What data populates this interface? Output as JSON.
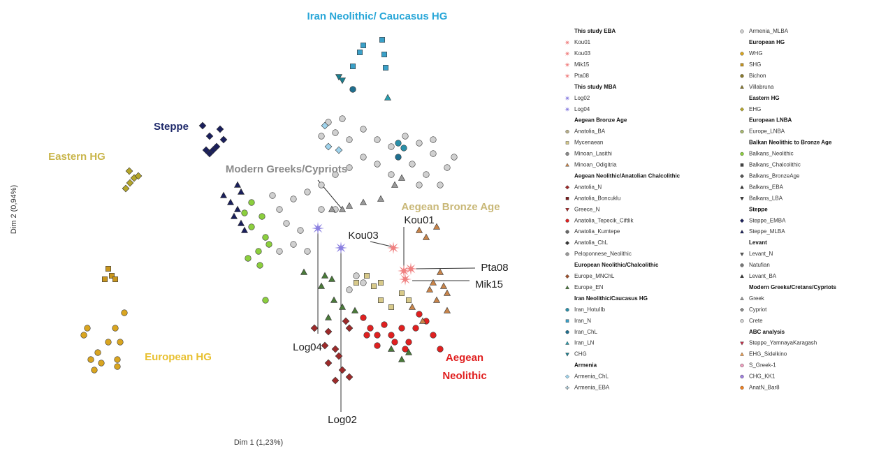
{
  "chart_data": {
    "type": "scatter",
    "x_label": "Dim 1 (1,23%)",
    "y_label": "Dim 2 (0,94%)",
    "xlim": [
      0,
      720
    ],
    "ylim": [
      0,
      600
    ],
    "annotations": [
      {
        "text": "Iran Neolithic/ Caucasus HG",
        "color": "#2aa7d8"
      },
      {
        "text": "Steppe",
        "color": "#1f2a6b"
      },
      {
        "text": "Eastern HG",
        "color": "#c9b54a"
      },
      {
        "text": "Modern Greeks/Cypriots",
        "color": "#8a8a8a"
      },
      {
        "text": "Aegean Bronze Age",
        "color": "#c9b878"
      },
      {
        "text": "European HG",
        "color": "#e8c030"
      },
      {
        "text": "Aegean Neolithic",
        "color": "#e02020"
      }
    ],
    "sample_labels": [
      "Kou01",
      "Kou03",
      "Pta08",
      "Mik15",
      "Log04",
      "Log02"
    ],
    "legend": [
      [
        {
          "heading": "This study EBA"
        },
        {
          "name": "Kou01",
          "color": "#f08080",
          "marker": "star",
          "x": [
            538
          ],
          "y": [
            212
          ]
        },
        {
          "name": "Kou03",
          "color": "#f08080",
          "marker": "star",
          "x": [
            523
          ],
          "y": [
            245
          ]
        },
        {
          "name": "Mik15",
          "color": "#f08080",
          "marker": "star",
          "x": [
            540
          ],
          "y": [
            200
          ]
        },
        {
          "name": "Pta08",
          "color": "#f08080",
          "marker": "star",
          "x": [
            548
          ],
          "y": [
            215
          ]
        },
        {
          "heading": "This study MBA"
        },
        {
          "name": "Log02",
          "color": "#8a7fe0",
          "marker": "star",
          "x": [
            448
          ],
          "y": [
            245
          ]
        },
        {
          "name": "Log04",
          "color": "#8a7fe0",
          "marker": "star",
          "x": [
            415
          ],
          "y": [
            273
          ]
        },
        {
          "heading": "Aegean Bronze Age"
        },
        {
          "name": "Anatolia_BA",
          "color": "#b9b08a",
          "marker": "circle",
          "x": [],
          "y": []
        },
        {
          "name": "Mycenaean",
          "color": "#d7c98a",
          "marker": "square",
          "x": [
            505,
            495,
            470,
            485,
            505,
            520,
            535,
            545
          ],
          "y": [
            170,
            190,
            195,
            205,
            195,
            160,
            180,
            170
          ]
        },
        {
          "name": "Minoan_Lasithi",
          "color": "#888888",
          "marker": "circle",
          "x": [],
          "y": []
        },
        {
          "name": "Minoan_Odigitria",
          "color": "#c8844a",
          "marker": "tri",
          "x": [
            560,
            570,
            585,
            590,
            595,
            600,
            580,
            575,
            550,
            565,
            585,
            600
          ],
          "y": [
            270,
            260,
            275,
            210,
            190,
            180,
            195,
            185,
            160,
            140,
            170,
            155
          ]
        },
        {
          "heading": "Aegean Neolithic/Anatolian Chalcolithic"
        },
        {
          "name": "Anatolia_N",
          "color": "#9e2a2a",
          "marker": "diamond",
          "x": [
            410,
            430,
            440,
            445,
            430,
            450,
            460,
            425,
            440,
            455,
            460
          ],
          "y": [
            130,
            125,
            100,
            90,
            80,
            70,
            60,
            105,
            55,
            140,
            130
          ]
        },
        {
          "name": "Anatolia_Boncuklu",
          "color": "#7a1a1a",
          "marker": "square",
          "x": [],
          "y": []
        },
        {
          "name": "Greece_N",
          "color": "#b22222",
          "marker": "tridown",
          "x": [],
          "y": []
        },
        {
          "name": "Anatolia_Tepecik_Ciftlik",
          "color": "#e02020",
          "marker": "circle",
          "x": [
            480,
            490,
            500,
            510,
            520,
            535,
            545,
            555,
            570,
            560,
            580,
            590,
            540,
            525,
            485,
            500
          ],
          "y": [
            145,
            130,
            120,
            135,
            120,
            130,
            110,
            130,
            140,
            150,
            120,
            100,
            100,
            110,
            120,
            105
          ]
        },
        {
          "name": "Anatolia_Kumtepe",
          "color": "#666666",
          "marker": "circle",
          "x": [],
          "y": []
        },
        {
          "name": "Anatolia_ChL",
          "color": "#333333",
          "marker": "diamond",
          "x": [],
          "y": []
        },
        {
          "name": "Peloponnese_Neolithic",
          "color": "#999999",
          "marker": "circle",
          "x": [],
          "y": []
        },
        {
          "heading": "European Neolithic/Chalcolithic"
        },
        {
          "name": "Europe_MNChL",
          "color": "#a0522d",
          "marker": "diamond",
          "x": [],
          "y": []
        },
        {
          "name": "Europe_EN",
          "color": "#4a7a3a",
          "marker": "tri",
          "x": [
            395,
            425,
            420,
            435,
            438,
            468,
            450,
            430,
            520,
            545,
            535
          ],
          "y": [
            210,
            205,
            190,
            200,
            170,
            155,
            160,
            145,
            100,
            95,
            85
          ]
        },
        {
          "heading": "Iran Neolithic/Caucasus HG"
        },
        {
          "name": "Iran_HotuIIb",
          "color": "#2a8fa8",
          "marker": "circle",
          "x": [
            530,
            538
          ],
          "y": [
            395,
            388
          ]
        },
        {
          "name": "Iran_N",
          "color": "#3aa0c8",
          "marker": "square",
          "x": [
            480,
            475,
            507,
            465,
            510,
            512
          ],
          "y": [
            535,
            525,
            543,
            505,
            522,
            503
          ]
        },
        {
          "name": "Iran_ChL",
          "color": "#1f6f8f",
          "marker": "circle",
          "x": [
            465,
            530
          ],
          "y": [
            472,
            375
          ]
        },
        {
          "name": "Iran_LN",
          "color": "#2a9fb0",
          "marker": "tri",
          "x": [
            515
          ],
          "y": [
            460
          ]
        },
        {
          "name": "CHG",
          "color": "#1b7f8f",
          "marker": "tridown",
          "x": [
            450,
            445
          ],
          "y": [
            485,
            490
          ]
        },
        {
          "heading": "Armenia"
        },
        {
          "name": "Armenia_ChL",
          "color": "#9fd3ec",
          "marker": "diamond",
          "x": [
            425,
            430,
            445
          ],
          "y": [
            420,
            390,
            385
          ]
        },
        {
          "name": "Armenia_EBA",
          "color": "#bfe3f3",
          "marker": "cross",
          "x": [],
          "y": []
        }
      ],
      [
        {
          "name": "Armenia_MLBA",
          "color": "#cfcfcf",
          "marker": "circle",
          "x": [],
          "y": []
        },
        {
          "heading": "European HG"
        },
        {
          "name": "WHG",
          "color": "#d9a520",
          "marker": "circle",
          "x": [
            138,
            85,
            125,
            80,
            132,
            100,
            90,
            105,
            95,
            128,
            128,
            115
          ],
          "y": [
            152,
            130,
            130,
            120,
            110,
            95,
            85,
            80,
            70,
            85,
            75,
            110
          ]
        },
        {
          "name": "SHG",
          "color": "#c8961e",
          "marker": "square",
          "x": [
            115,
            120,
            110,
            125
          ],
          "y": [
            215,
            205,
            200,
            200
          ]
        },
        {
          "name": "Bichon",
          "color": "#8a7a2a",
          "marker": "circle",
          "x": [],
          "y": []
        },
        {
          "name": "Villabruna",
          "color": "#8a7a2a",
          "marker": "tri",
          "x": [],
          "y": []
        },
        {
          "heading": "Eastern HG"
        },
        {
          "name": "EHG",
          "color": "#b5a62a",
          "marker": "diamond",
          "x": [
            145,
            152,
            140,
            158,
            146
          ],
          "y": [
            355,
            345,
            330,
            348,
            338
          ]
        },
        {
          "heading": "European LNBA"
        },
        {
          "name": "Europe_LNBA",
          "color": "#a8b870",
          "marker": "circle",
          "x": [],
          "y": []
        },
        {
          "heading": "Balkan Neolithic to Bronze Age"
        },
        {
          "name": "Balkans_Neolithic",
          "color": "#8ccf3e",
          "marker": "circle",
          "x": [
            320,
            335,
            340,
            330,
            345,
            315,
            332,
            320,
            340,
            310
          ],
          "y": [
            310,
            290,
            260,
            240,
            250,
            230,
            220,
            275,
            170,
            295
          ]
        },
        {
          "name": "Balkans_Chalcolithic",
          "color": "#444444",
          "marker": "square",
          "x": [],
          "y": []
        },
        {
          "name": "Balkans_BronzeAge",
          "color": "#555555",
          "marker": "diamond",
          "x": [],
          "y": []
        },
        {
          "name": "Balkans_EBA",
          "color": "#333333",
          "marker": "tri",
          "x": [],
          "y": []
        },
        {
          "name": "Balkans_LBA",
          "color": "#333333",
          "marker": "tridown",
          "x": [],
          "y": []
        },
        {
          "heading": "Steppe"
        },
        {
          "name": "Steppe_EMBA",
          "color": "#1a1f5c",
          "marker": "diamond",
          "x": [
            250,
            260,
            270,
            280,
            265,
            260,
            255,
            275
          ],
          "y": [
            420,
            405,
            390,
            400,
            385,
            380,
            385,
            415
          ]
        },
        {
          "name": "Steppe_MLBA",
          "color": "#1a1f5c",
          "marker": "tri",
          "x": [
            300,
            305,
            290,
            300,
            305,
            295,
            280,
            310
          ],
          "y": [
            335,
            325,
            310,
            300,
            280,
            290,
            320,
            270
          ]
        },
        {
          "heading": "Levant"
        },
        {
          "name": "Levant_N",
          "color": "#555555",
          "marker": "tridown",
          "x": [],
          "y": []
        },
        {
          "name": "Natufian",
          "color": "#777777",
          "marker": "circle",
          "x": [],
          "y": []
        },
        {
          "name": "Levant_BA",
          "color": "#333333",
          "marker": "tri",
          "x": [],
          "y": []
        },
        {
          "heading": "Modern Greeks/Cretans/Cypriots"
        },
        {
          "name": "Greek",
          "color": "#9a9a9a",
          "marker": "tri",
          "x": [
            435,
            450,
            460,
            480,
            505,
            525,
            535
          ],
          "y": [
            300,
            300,
            305,
            310,
            315,
            335,
            345
          ]
        },
        {
          "name": "Cypriot",
          "color": "#888888",
          "marker": "diamond",
          "x": [],
          "y": []
        },
        {
          "name": "Crete",
          "color": "#d0d0d0",
          "marker": "circle",
          "x": [
            430,
            450,
            420,
            440,
            460,
            480,
            500,
            520,
            560,
            580,
            600,
            550,
            570,
            590,
            520,
            500,
            480,
            460,
            440,
            420,
            400,
            380,
            360,
            350,
            370,
            390,
            380,
            360,
            400,
            480,
            470,
            460,
            440,
            420,
            580,
            540,
            610,
            560
          ],
          "y": [
            425,
            430,
            405,
            410,
            400,
            415,
            400,
            390,
            395,
            380,
            360,
            365,
            350,
            335,
            350,
            365,
            375,
            360,
            350,
            335,
            325,
            315,
            300,
            320,
            280,
            270,
            250,
            240,
            240,
            195,
            205,
            185,
            300,
            300,
            400,
            405,
            375,
            335
          ]
        },
        {
          "heading": "ABC analysis"
        },
        {
          "name": "Steppe_YamnayaKaragash",
          "color": "#c0304a",
          "marker": "tridown",
          "x": [],
          "y": []
        },
        {
          "name": "EHG_Sidelkino",
          "color": "#f0a050",
          "marker": "tri",
          "x": [],
          "y": []
        },
        {
          "name": "S_Greek-1",
          "color": "#f0a0c0",
          "marker": "circle",
          "x": [],
          "y": []
        },
        {
          "name": "CHG_KK1",
          "color": "#a080e0",
          "marker": "circle",
          "x": [],
          "y": []
        },
        {
          "name": "AnatN_Bar8",
          "color": "#f08020",
          "marker": "circle",
          "x": [],
          "y": []
        }
      ]
    ]
  }
}
